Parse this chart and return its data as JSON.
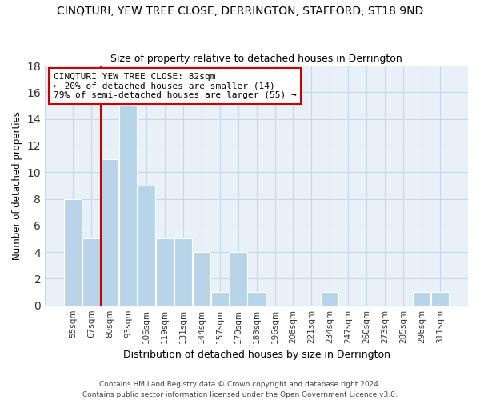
{
  "title_line1": "CINQTURI, YEW TREE CLOSE, DERRINGTON, STAFFORD, ST18 9ND",
  "title_line2": "Size of property relative to detached houses in Derrington",
  "xlabel": "Distribution of detached houses by size in Derrington",
  "ylabel": "Number of detached properties",
  "bar_labels": [
    "55sqm",
    "67sqm",
    "80sqm",
    "93sqm",
    "106sqm",
    "119sqm",
    "131sqm",
    "144sqm",
    "157sqm",
    "170sqm",
    "183sqm",
    "196sqm",
    "208sqm",
    "221sqm",
    "234sqm",
    "247sqm",
    "260sqm",
    "273sqm",
    "285sqm",
    "298sqm",
    "311sqm"
  ],
  "bar_values": [
    8,
    5,
    11,
    15,
    9,
    5,
    5,
    4,
    1,
    4,
    1,
    0,
    0,
    0,
    1,
    0,
    0,
    0,
    0,
    1,
    1
  ],
  "bar_color": "#b8d4e8",
  "reference_line_color": "#cc0000",
  "reference_line_index": 2,
  "ylim": [
    0,
    18
  ],
  "yticks": [
    0,
    2,
    4,
    6,
    8,
    10,
    12,
    14,
    16,
    18
  ],
  "annotation_line1": "CINQTURI YEW TREE CLOSE: 82sqm",
  "annotation_line2": "← 20% of detached houses are smaller (14)",
  "annotation_line3": "79% of semi-detached houses are larger (55) →",
  "annotation_box_color": "#ffffff",
  "annotation_box_edge_color": "#cc0000",
  "footer_text": "Contains HM Land Registry data © Crown copyright and database right 2024.\nContains public sector information licensed under the Open Government Licence v3.0.",
  "grid_color": "#c8d8e8",
  "plot_bg_color": "#e8f0f8",
  "title1_fontsize": 10,
  "title2_fontsize": 9
}
